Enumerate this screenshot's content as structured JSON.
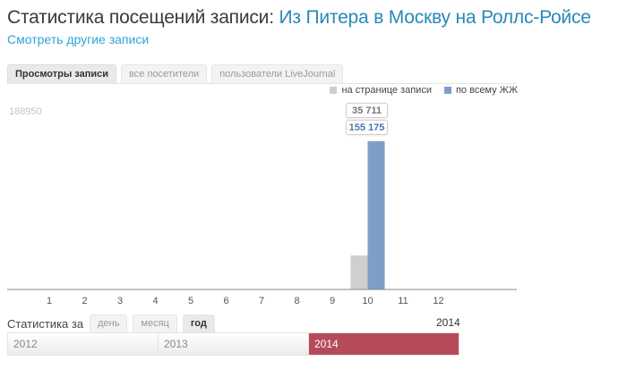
{
  "header": {
    "title_prefix": "Статистика посещений записи:",
    "post_title": "Из Питера в Москву на Роллс-Ройсе",
    "other_posts_link": "Смотреть другие записи"
  },
  "tabs": [
    {
      "label": "Просмотры записи",
      "active": true
    },
    {
      "label": "все посетители",
      "active": false
    },
    {
      "label": "пользователи LiveJournal",
      "active": false
    }
  ],
  "legend": [
    {
      "label": "на странице записи",
      "color": "#cfcfcf"
    },
    {
      "label": "по всему ЖЖ",
      "color": "#7f9ec6"
    }
  ],
  "chart_data": {
    "type": "bar",
    "categories": [
      "1",
      "2",
      "3",
      "4",
      "5",
      "6",
      "7",
      "8",
      "9",
      "10",
      "11",
      "12"
    ],
    "series": [
      {
        "name": "на странице записи",
        "values": [
          0,
          0,
          0,
          0,
          0,
          0,
          0,
          0,
          0,
          35711,
          0,
          0
        ],
        "color": "#cfcfcf"
      },
      {
        "name": "по всему ЖЖ",
        "values": [
          0,
          0,
          0,
          0,
          0,
          0,
          0,
          0,
          0,
          155175,
          0,
          0
        ],
        "color": "#7f9ec6"
      }
    ],
    "ymax": 188950,
    "ymax_label": "188950",
    "tooltip": {
      "category": "10",
      "values": [
        "35 711",
        "155 175"
      ]
    }
  },
  "period": {
    "label": "Статистика за",
    "options": [
      {
        "label": "день",
        "active": false
      },
      {
        "label": "месяц",
        "active": false
      },
      {
        "label": "год",
        "active": true
      }
    ],
    "current": "2014"
  },
  "years": [
    {
      "label": "2012",
      "active": false
    },
    {
      "label": "2013",
      "active": false
    },
    {
      "label": "2014",
      "active": true
    }
  ],
  "colors": {
    "accent": "#2789b8",
    "link": "#2fa4d8",
    "active_year": "#b64a5b"
  }
}
